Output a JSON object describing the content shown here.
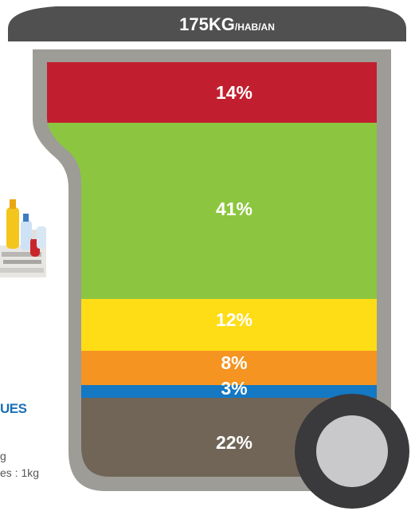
{
  "lid": {
    "amount": "175KG",
    "unit": "/HAB/AN"
  },
  "side": {
    "heading_fragment": "UES",
    "line1": "g",
    "line2": "es : 1kg"
  },
  "chart_data": {
    "type": "stacked-bar",
    "title": "175KG /HAB/AN",
    "total": 175,
    "unit": "/HAB/AN",
    "segments": [
      {
        "label": "14%",
        "value": 14,
        "color": "#c11f2f"
      },
      {
        "label": "41%",
        "value": 41,
        "color": "#8cc640"
      },
      {
        "label": "12%",
        "value": 12,
        "color": "#fedd16"
      },
      {
        "label": "8%",
        "value": 8,
        "color": "#f59420"
      },
      {
        "label": "3%",
        "value": 3,
        "color": "#1478c3"
      },
      {
        "label": "22%",
        "value": 22,
        "color": "#716558"
      }
    ]
  }
}
